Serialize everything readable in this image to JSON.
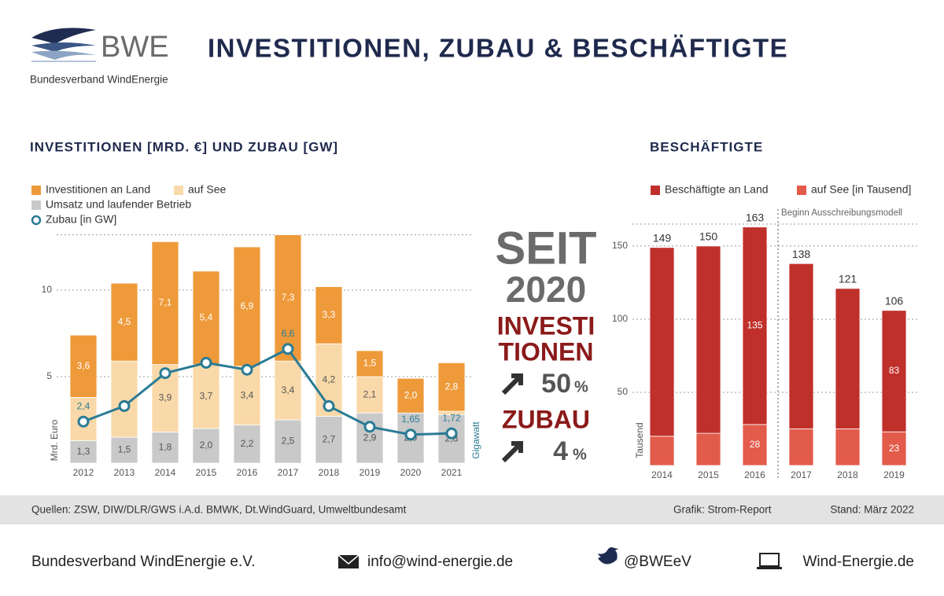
{
  "header": {
    "logo": "BWE",
    "org": "Bundesverband WindEnergie",
    "title": "INVESTITIONEN, ZUBAU & BESCHÄFTIGTE"
  },
  "chart_data": [
    {
      "type": "bar",
      "stacked": true,
      "title": "INVESTITIONEN [MRD. €] UND ZUBAU [GW]",
      "y_label": "Mrd. Euro",
      "y2_label": "Gigawatt",
      "categories": [
        "2012",
        "2013",
        "2014",
        "2015",
        "2016",
        "2017",
        "2018",
        "2019",
        "2020",
        "2021"
      ],
      "series": [
        {
          "name": "Investitionen an Land",
          "color": "#ee9a3a",
          "label_color": "#ffffff",
          "values": [
            3.6,
            4.5,
            7.1,
            5.4,
            6.9,
            7.3,
            3.3,
            1.5,
            2.0,
            2.8
          ],
          "value_labels": [
            "3,6",
            "4,5",
            "7,1",
            "5,4",
            "6,9",
            "7,3",
            "3,3",
            "1,5",
            "2,0",
            "2,8"
          ]
        },
        {
          "name": "auf See",
          "color": "#f9d9a9",
          "label_color": "#555555",
          "values": [
            2.5,
            4.4,
            3.9,
            3.7,
            3.4,
            3.4,
            4.2,
            2.1,
            0,
            0.2
          ],
          "value_labels": [
            null,
            null,
            "3,9",
            "3,7",
            "3,4",
            "3,4",
            "4,2",
            "2,1",
            null,
            null
          ]
        },
        {
          "name": "Umsatz und laufender Betrieb",
          "color": "#c9c9c9",
          "label_color": "#555555",
          "values": [
            1.3,
            1.5,
            1.8,
            2.0,
            2.2,
            2.5,
            2.7,
            2.9,
            2.9,
            2.8
          ],
          "value_labels": [
            "1,3",
            "1,5",
            "1,8",
            "2,0",
            "2,2",
            "2,5",
            "2,7",
            "2,9",
            "2,9",
            "2,8"
          ]
        },
        {
          "name": "Zubau [in GW]",
          "type": "line",
          "color": "#2a7b95",
          "label_color": "#2a7b95",
          "values": [
            2.4,
            3.3,
            5.2,
            5.8,
            5.4,
            6.6,
            3.3,
            2.1,
            1.65,
            1.72
          ],
          "value_labels": [
            "2,4",
            null,
            null,
            null,
            null,
            "6,6",
            null,
            null,
            "1,65",
            "1,72"
          ]
        }
      ],
      "ylim": [
        0,
        13.2
      ],
      "yticks": [
        5,
        10
      ],
      "grid": true
    },
    {
      "type": "bar",
      "stacked": true,
      "title": "BESCHÄFTIGTE",
      "y_label": "Tausend",
      "annotation": "Beginn Ausschreibungsmodell",
      "categories": [
        "2014",
        "2015",
        "2016",
        "2017",
        "2018",
        "2019"
      ],
      "series": [
        {
          "name": "Beschäftigte an Land",
          "color": "#c0302b",
          "label_color": "#ffffff",
          "values": [
            129,
            128,
            135,
            113,
            96,
            83
          ],
          "value_labels": [
            null,
            null,
            "135",
            null,
            null,
            "83"
          ]
        },
        {
          "name": "auf See [in Tausend]",
          "color": "#e35b4b",
          "label_color": "#ffffff",
          "values": [
            20,
            22,
            28,
            25,
            25,
            23
          ],
          "value_labels": [
            null,
            null,
            "28",
            null,
            null,
            "23"
          ]
        }
      ],
      "totals": [
        149,
        150,
        163,
        138,
        121,
        106
      ],
      "ylim": [
        0,
        165
      ],
      "yticks": [
        50,
        100,
        150
      ],
      "grid": true
    }
  ],
  "callout": {
    "line1": "SEIT",
    "line2": "2020",
    "line3": "INVESTI",
    "line4": "TIONEN",
    "invest_value": "50",
    "invest_unit": "%",
    "line5": "ZUBAU",
    "zubau_value": "4",
    "zubau_unit": "%"
  },
  "footer": {
    "sources": "Quellen: ZSW, DIW/DLR/GWS i.A.d. BMWK, Dt.WindGuard, Umweltbundesamt",
    "graphic": "Grafik: Strom-Report",
    "date": "Stand: März 2022"
  },
  "contact": {
    "org": "Bundesverband WindEnergie e.V.",
    "email": "info@wind-energie.de",
    "twitter": "@BWEeV",
    "web": "Wind-Energie.de"
  }
}
